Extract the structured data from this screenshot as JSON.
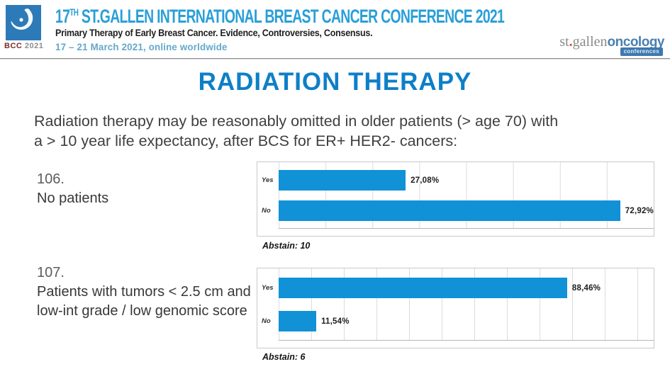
{
  "header": {
    "logo_bcc": "BCC",
    "logo_year": "2021",
    "title_num": "17",
    "title_sup": "TH",
    "title_rest": " ST.GALLEN INTERNATIONAL BREAST CANCER CONFERENCE 2021",
    "subtitle": "Primary Therapy of Early Breast Cancer. Evidence, Controversies, Consensus.",
    "date_line": "17 – 21 March 2021, online worldwide",
    "right_logo": {
      "st": "st",
      "dot": ".",
      "gallen": "gallen",
      "oncology": "oncology",
      "badge": "conferences"
    }
  },
  "page_title": "RADIATION THERAPY",
  "question": {
    "line1": "Radiation therapy may be reasonably omitted in older patients (> age 70)  with",
    "line2": "a > 10 year life expectancy, after BCS for ER+ HER2- cancers:"
  },
  "colors": {
    "conference_title_blue": "#299fd8",
    "date_blue": "#62a9c9",
    "page_title_blue": "#0e7fc8",
    "bar_blue": "#1191d6",
    "logo_square_blue": "#2d7ab8",
    "bcc_maroon": "#7e2a23",
    "oncology_blue": "#4b80b2",
    "grid_gray": "#dcdcdc"
  },
  "chart_data": [
    {
      "type": "bar",
      "orientation": "horizontal",
      "question_number": "106.",
      "question_label": "No patients",
      "categories": [
        "Yes",
        "No"
      ],
      "values": [
        27.08,
        72.92
      ],
      "value_labels": [
        "27,08%",
        "72,92%"
      ],
      "abstain_label": "Abstain: 10",
      "xlim": [
        0,
        80
      ],
      "gridline_step": 10,
      "grid": true,
      "legend": false,
      "bar_color": "#1191d6"
    },
    {
      "type": "bar",
      "orientation": "horizontal",
      "question_number": "107.",
      "question_label": "Patients with tumors < 2.5 cm and low-int grade / low genomic score",
      "categories": [
        "Yes",
        "No"
      ],
      "values": [
        88.46,
        11.54
      ],
      "value_labels": [
        "88,46%",
        "11,54%"
      ],
      "abstain_label": "Abstain: 6",
      "xlim": [
        0,
        115
      ],
      "gridline_step": 10,
      "grid": true,
      "legend": false,
      "bar_color": "#1191d6"
    }
  ]
}
